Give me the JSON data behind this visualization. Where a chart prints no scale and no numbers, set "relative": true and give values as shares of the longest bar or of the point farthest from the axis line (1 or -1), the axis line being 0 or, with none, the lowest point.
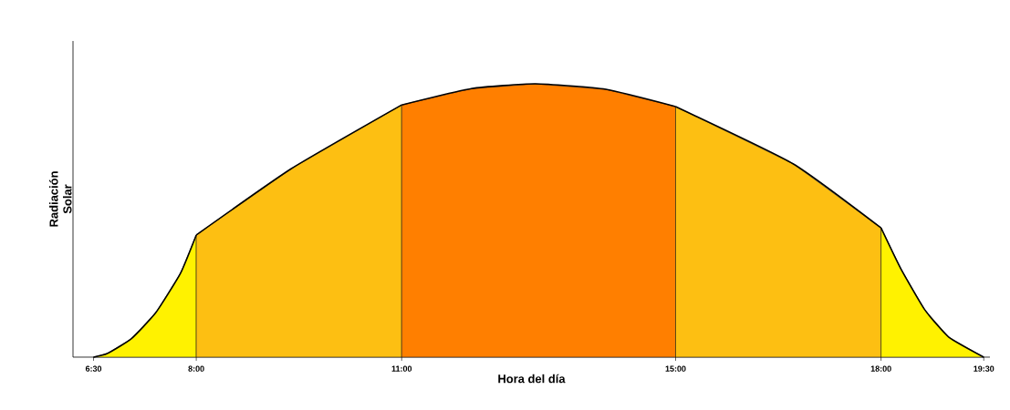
{
  "chart_data": {
    "type": "area",
    "relative": true,
    "xlabel": "Hora del día",
    "ylabel": "Radiación Solar",
    "xlim": [
      6.2,
      19.59
    ],
    "xticks": [
      {
        "value": 6.5,
        "label": "6:30"
      },
      {
        "value": 8,
        "label": "8:00"
      },
      {
        "value": 11,
        "label": "11:00"
      },
      {
        "value": 15,
        "label": "15:00"
      },
      {
        "value": 18,
        "label": "18:00"
      },
      {
        "value": 19.5,
        "label": "19:30"
      }
    ],
    "series": [
      {
        "color": "#fff200",
        "x": [
          6.5,
          6.7,
          7.05,
          7.41,
          7.77,
          8
        ],
        "values": [
          0,
          0.013,
          0.067,
          0.163,
          0.307,
          0.447
        ]
      },
      {
        "color": "#fdbf12",
        "x": [
          8,
          9.39,
          11
        ],
        "values": [
          0.447,
          0.69,
          0.923
        ]
      },
      {
        "color": "#ff7f00",
        "x": [
          11,
          12.02,
          12.95,
          13.98,
          15
        ],
        "values": [
          0.923,
          0.983,
          1,
          0.98,
          0.917
        ]
      },
      {
        "color": "#fdbf12",
        "x": [
          15,
          16.72,
          18
        ],
        "values": [
          0.917,
          0.707,
          0.473
        ]
      },
      {
        "color": "#fff200",
        "x": [
          18,
          18.29,
          18.64,
          18.99,
          19.5
        ],
        "values": [
          0.473,
          0.323,
          0.173,
          0.073,
          0
        ]
      }
    ]
  }
}
